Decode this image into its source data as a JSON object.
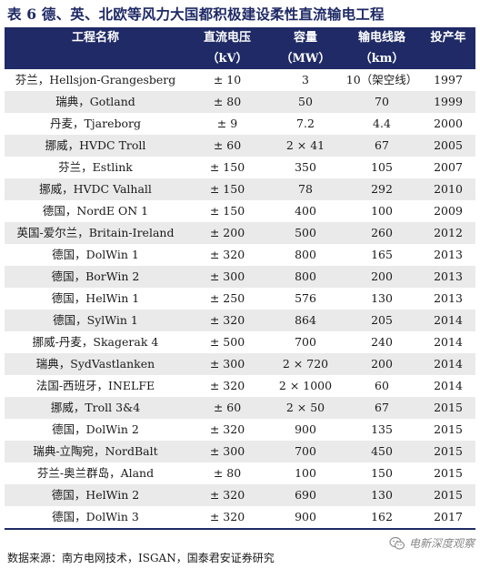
{
  "title": "表 6 德、英、北欧等风力大国都积极建设柔性直流输电工程",
  "table": {
    "headers": [
      [
        "工程名称",
        ""
      ],
      [
        "直流电压",
        "（kV）"
      ],
      [
        "容量",
        "（MW）"
      ],
      [
        "输电线路",
        "（km）"
      ],
      [
        "投产年",
        ""
      ]
    ],
    "rows": [
      [
        "芬兰，Hellsjon-Grangesberg",
        "± 10",
        "3",
        "10（架空线）",
        "1997"
      ],
      [
        "瑞典，Gotland",
        "± 80",
        "50",
        "70",
        "1999"
      ],
      [
        "丹麦，Tjareborg",
        "± 9",
        "7.2",
        "4.4",
        "2000"
      ],
      [
        "挪威，HVDC Troll",
        "± 60",
        "2 × 41",
        "67",
        "2005"
      ],
      [
        "芬兰，Estlink",
        "± 150",
        "350",
        "105",
        "2007"
      ],
      [
        "挪威，HVDC Valhall",
        "± 150",
        "78",
        "292",
        "2010"
      ],
      [
        "德国，NordE ON 1",
        "± 150",
        "400",
        "100",
        "2009"
      ],
      [
        "英国-爱尔兰，Britain-Ireland",
        "± 200",
        "500",
        "260",
        "2012"
      ],
      [
        "德国，DolWin 1",
        "± 320",
        "800",
        "165",
        "2013"
      ],
      [
        "德国，BorWin 2",
        "± 300",
        "800",
        "200",
        "2013"
      ],
      [
        "德国，HelWin 1",
        "± 250",
        "576",
        "130",
        "2013"
      ],
      [
        "德国，SylWin 1",
        "± 320",
        "864",
        "205",
        "2014"
      ],
      [
        "挪威-丹麦，Skagerak 4",
        "± 500",
        "700",
        "240",
        "2014"
      ],
      [
        "瑞典，SydVastlanken",
        "± 300",
        "2 × 720",
        "200",
        "2014"
      ],
      [
        "法国-西班牙，INELFE",
        "± 320",
        "2 × 1000",
        "60",
        "2014"
      ],
      [
        "挪威，Troll 3&4",
        "± 60",
        "2 × 50",
        "67",
        "2015"
      ],
      [
        "德国，DolWin 2",
        "± 320",
        "900",
        "135",
        "2015"
      ],
      [
        "瑞典-立陶宛，NordBalt",
        "± 300",
        "700",
        "450",
        "2015"
      ],
      [
        "芬兰-奥兰群岛，Aland",
        "± 80",
        "100",
        "150",
        "2015"
      ],
      [
        "德国，HelWin 2",
        "± 320",
        "690",
        "130",
        "2015"
      ],
      [
        "德国，DolWin 3",
        "± 320",
        "900",
        "162",
        "2017"
      ]
    ]
  },
  "source": "数据来源：南方电网技术，ISGAN，国泰君安证券研究",
  "watermark": {
    "text": "电新深度观察",
    "icon": "wechat-icon"
  },
  "colors": {
    "header_bg": "#1f2a66",
    "title": "#1f2a66",
    "stripe": "#eaeaea"
  }
}
